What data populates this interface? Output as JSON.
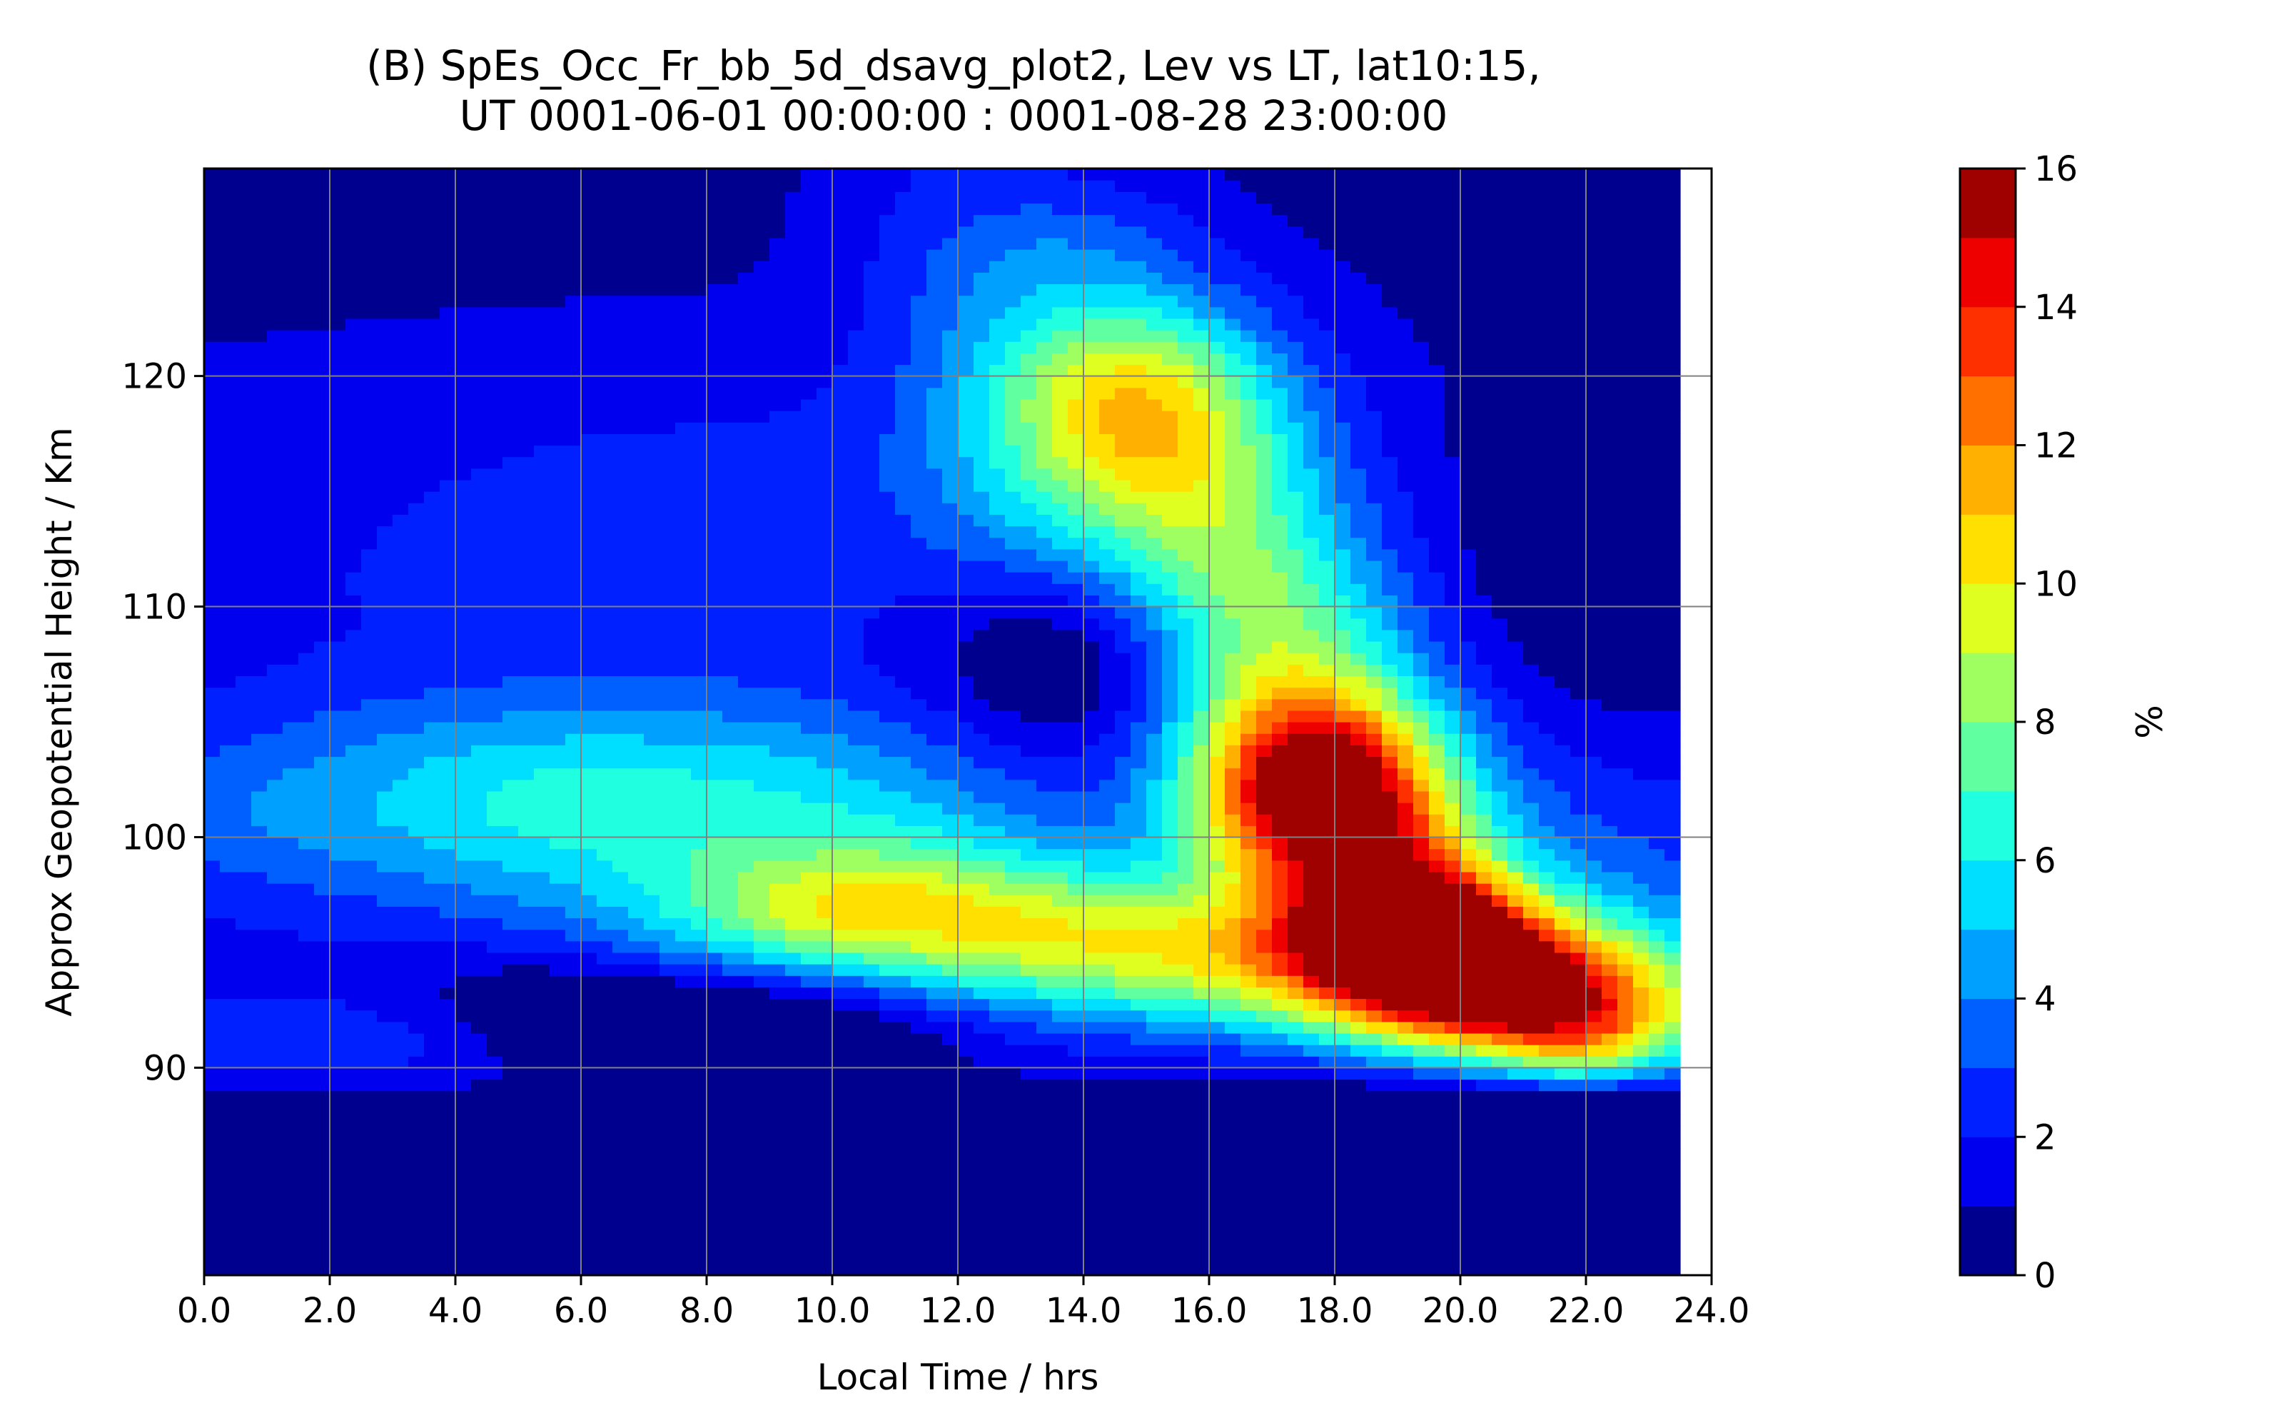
{
  "chart_data": {
    "type": "heatmap",
    "subtype": "filled-contour",
    "title_line1": "(B) SpEs_Occ_Fr_bb_5d_dsavg_plot2, Lev vs LT, lat10:15,",
    "title_line2": "UT 0001-06-01 00:00:00 : 0001-08-28 23:00:00",
    "xlabel": "Local Time / hrs",
    "ylabel": "Approx Geopotential Height / Km",
    "xlim": [
      0,
      24
    ],
    "ylim": [
      81,
      129
    ],
    "x_ticks": [
      0,
      2,
      4,
      6,
      8,
      10,
      12,
      14,
      16,
      18,
      20,
      22,
      24
    ],
    "x_tick_labels": [
      "0.0",
      "2.0",
      "4.0",
      "6.0",
      "8.0",
      "10.0",
      "12.0",
      "14.0",
      "16.0",
      "18.0",
      "20.0",
      "22.0",
      "24.0"
    ],
    "y_ticks": [
      90,
      100,
      110,
      120
    ],
    "y_tick_labels": [
      "90",
      "100",
      "110",
      "120"
    ],
    "data_x_max": 23.5,
    "grid": true,
    "colorbar": {
      "label": "%",
      "min": 0,
      "max": 16,
      "levels": [
        0,
        1,
        2,
        3,
        4,
        5,
        6,
        7,
        8,
        9,
        10,
        11,
        12,
        13,
        14,
        15,
        16
      ],
      "tick_values": [
        0,
        2,
        4,
        6,
        8,
        10,
        12,
        14,
        16
      ],
      "tick_labels": [
        "0",
        "2",
        "4",
        "6",
        "8",
        "10",
        "12",
        "14",
        "16"
      ],
      "colors": [
        "#00008f",
        "#0000ef",
        "#0020ff",
        "#0060ff",
        "#00a0ff",
        "#00dfff",
        "#20ffdf",
        "#60ffa0",
        "#9fff60",
        "#dfff20",
        "#ffe000",
        "#ffb000",
        "#ff7000",
        "#ff3000",
        "#ef0000",
        "#9f0000"
      ]
    },
    "features": [
      {
        "shape": "gauss",
        "lt": 8.0,
        "h": 101.5,
        "s_lt": 4.5,
        "s_h": 3.2,
        "amp": 4.3
      },
      {
        "shape": "gauss",
        "lt": 4.2,
        "h": 101.5,
        "s_lt": 2.5,
        "s_h": 3.5,
        "amp": 1.4
      },
      {
        "shape": "gauss",
        "lt": 0.5,
        "h": 101.0,
        "s_lt": 1.4,
        "s_h": 2.5,
        "amp": 0.9
      },
      {
        "shape": "gauss",
        "lt": 1.5,
        "h": 91.0,
        "s_lt": 3.0,
        "s_h": 1.5,
        "amp": 1.4
      },
      {
        "shape": "ridge",
        "lt0": 15.0,
        "h0": 119.0,
        "lt1": 17.8,
        "h1": 102.0,
        "width": 1.6,
        "hwidth": 3.0,
        "amp": 8.6
      },
      {
        "shape": "ridge",
        "lt0": 14.0,
        "h0": 125.0,
        "lt1": 15.0,
        "h1": 119.0,
        "width": 1.6,
        "hwidth": 3.0,
        "amp": 5.0
      },
      {
        "shape": "ridge",
        "lt0": 17.8,
        "h0": 102.0,
        "lt1": 19.2,
        "h1": 96.0,
        "width": 1.3,
        "hwidth": 2.8,
        "amp": 8.8
      },
      {
        "shape": "ridge",
        "lt0": 11.0,
        "h0": 96.5,
        "lt1": 20.5,
        "h1": 93.5,
        "width": 2.6,
        "hwidth": 2.2,
        "amp": 8.4
      },
      {
        "shape": "ridge",
        "lt0": 19.5,
        "h0": 96.0,
        "lt1": 21.8,
        "h1": 91.5,
        "width": 1.3,
        "hwidth": 2.0,
        "amp": 7.6
      },
      {
        "shape": "ridge",
        "lt0": 11.5,
        "h0": 129.0,
        "lt1": 13.0,
        "h1": 116.0,
        "width": 1.3,
        "hwidth": 4.5,
        "amp": 2.5
      },
      {
        "shape": "gauss",
        "lt": 9.0,
        "h": 115.0,
        "s_lt": 5.5,
        "s_h": 5.0,
        "amp": 1.6
      },
      {
        "shape": "gauss",
        "lt": 22.5,
        "h": 98.0,
        "s_lt": 1.5,
        "s_h": 4.0,
        "amp": 1.6
      }
    ],
    "pockets": [
      {
        "lt": 8.3,
        "h": 91.5,
        "s_lt": 2.2,
        "s_h": 2.2,
        "amp": 3.8
      },
      {
        "lt": 14.5,
        "h": 108.5,
        "s_lt": 2.0,
        "s_h": 4.2,
        "amp": 4.0
      },
      {
        "lt": 5.0,
        "h": 93.0,
        "s_lt": 1.2,
        "s_h": 1.5,
        "amp": 1.0
      },
      {
        "lt": 22.5,
        "h": 113.0,
        "s_lt": 1.8,
        "s_h": 5.0,
        "amp": 2.2
      }
    ],
    "base_level": 1.4,
    "floor_height": [
      [
        0,
        88.3
      ],
      [
        6,
        88.0
      ],
      [
        10,
        88.3
      ],
      [
        14,
        88.8
      ],
      [
        16,
        89.0
      ],
      [
        20,
        88.8
      ],
      [
        22,
        88.6
      ],
      [
        23.5,
        88.6
      ]
    ],
    "top_fall_height": 111.0
  }
}
